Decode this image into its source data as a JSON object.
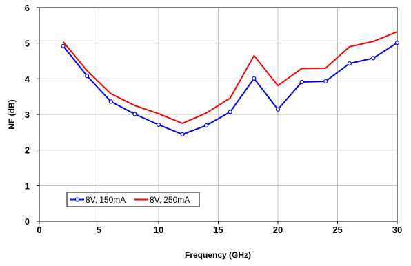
{
  "chart_data": {
    "type": "line",
    "xlabel": "Frequency (GHz)",
    "ylabel": "NF (dB)",
    "xlim": [
      0,
      30
    ],
    "ylim": [
      0,
      6
    ],
    "xticks": [
      0,
      5,
      10,
      15,
      20,
      25,
      30
    ],
    "yticks": [
      0,
      1,
      2,
      3,
      4,
      5,
      6
    ],
    "grid": true,
    "legend_position": "bottom-left",
    "series": [
      {
        "name": "8V, 150mA",
        "color": "#0000ff",
        "marker": "circle",
        "x": [
          2,
          4,
          6,
          8,
          10,
          12,
          14,
          16,
          18,
          20,
          22,
          24,
          26,
          28,
          30
        ],
        "y": [
          4.92,
          4.08,
          3.36,
          3.01,
          2.71,
          2.44,
          2.69,
          3.07,
          4.01,
          3.14,
          3.91,
          3.93,
          4.43,
          4.58,
          5.01
        ]
      },
      {
        "name": "8V, 250mA",
        "color": "#ff0000",
        "marker": "none",
        "x": [
          2,
          4,
          6,
          8,
          10,
          12,
          14,
          16,
          18,
          20,
          22,
          24,
          26,
          28,
          30
        ],
        "y": [
          5.04,
          4.23,
          3.58,
          3.25,
          3.02,
          2.75,
          3.04,
          3.46,
          4.65,
          3.81,
          4.29,
          4.3,
          4.9,
          5.05,
          5.32
        ]
      }
    ]
  }
}
